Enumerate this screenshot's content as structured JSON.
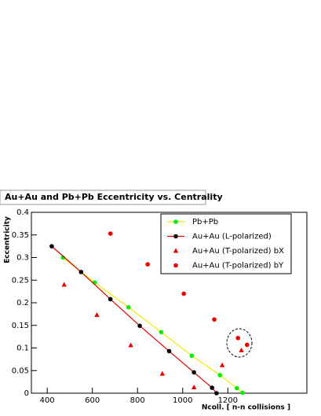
{
  "chart_data": {
    "type": "scatter",
    "title": "Au+Au and Pb+Pb  Eccentricity vs. Centrality",
    "x_label": "Ncoll. [ n-n collisions ]",
    "y_label": "Eccentricity",
    "xlim": [
      330,
      1550
    ],
    "ylim": [
      0,
      0.4
    ],
    "xticks": [
      400,
      600,
      800,
      1000,
      1200
    ],
    "yticks": [
      0,
      0.05,
      0.1,
      0.15,
      0.2,
      0.25,
      0.3,
      0.35,
      0.4
    ],
    "legend": "top-right",
    "series": [
      {
        "name": "Pb+Pb",
        "color": "#00ee00",
        "marker": "circle",
        "line_color": "#eeee00",
        "x": [
          470,
          610,
          760,
          905,
          1040,
          1165,
          1240,
          1265
        ],
        "values": [
          0.3,
          0.245,
          0.19,
          0.135,
          0.083,
          0.04,
          0.011,
          0.001
        ]
      },
      {
        "name": "Au+Au (L-polarized)",
        "color": "#000000",
        "marker": "circle",
        "line_color": "#dd0000",
        "x": [
          420,
          550,
          680,
          810,
          940,
          1050,
          1130,
          1150
        ],
        "values": [
          0.325,
          0.268,
          0.208,
          0.149,
          0.093,
          0.046,
          0.012,
          0.0
        ]
      },
      {
        "name": "Au+Au (T-polarized) bX",
        "color": "#ee0000",
        "marker": "triangle",
        "x": [
          475,
          620,
          770,
          910,
          1050,
          1175,
          1260
        ],
        "values": [
          0.24,
          0.173,
          0.106,
          0.043,
          0.013,
          0.062,
          0.095
        ]
      },
      {
        "name": "Au+Au (T-polarized) bY",
        "color": "#ee0000",
        "marker": "circle",
        "x": [
          680,
          845,
          1005,
          1140,
          1245,
          1285
        ],
        "values": [
          0.353,
          0.285,
          0.22,
          0.163,
          0.122,
          0.107
        ]
      }
    ]
  }
}
